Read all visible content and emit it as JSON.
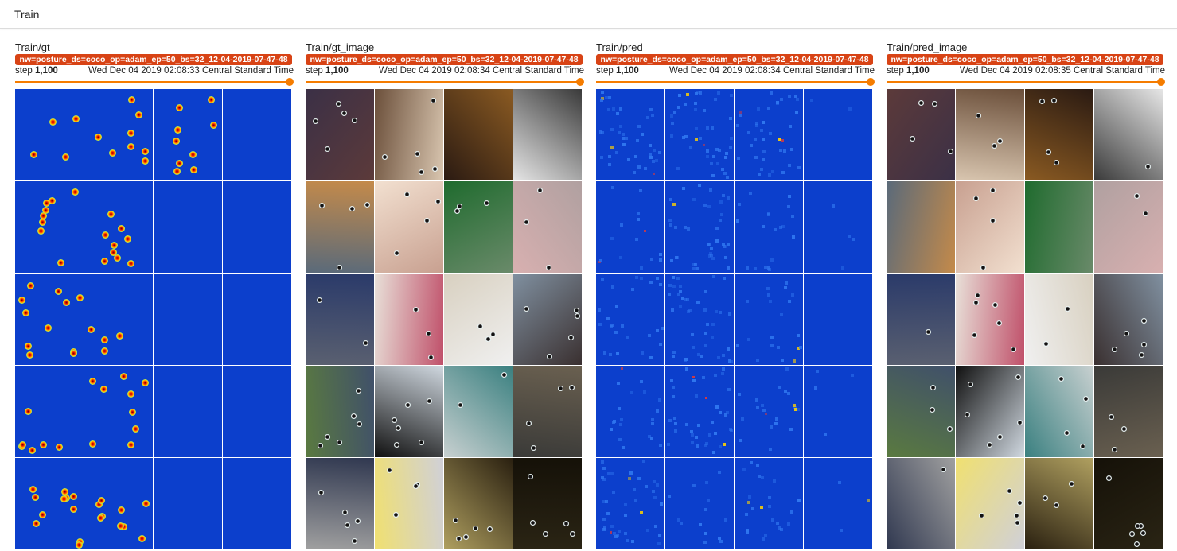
{
  "header": {
    "title": "Train"
  },
  "cards": [
    {
      "title": "Train/gt",
      "run": "nw=posture_ds=coco_op=adam_ep=50_bs=32_12-04-2019-07-47-48",
      "step_label": "step",
      "step_value": "1,100",
      "timestamp": "Wed Dec 04 2019 02:08:33 Central Standard Time",
      "kind": "heatmap"
    },
    {
      "title": "Train/gt_image",
      "run": "nw=posture_ds=coco_op=adam_ep=50_bs=32_12-04-2019-07-47-48",
      "step_label": "step",
      "step_value": "1,100",
      "timestamp": "Wed Dec 04 2019 02:08:34 Central Standard Time",
      "kind": "photo"
    },
    {
      "title": "Train/pred",
      "run": "nw=posture_ds=coco_op=adam_ep=50_bs=32_12-04-2019-07-47-48",
      "step_label": "step",
      "step_value": "1,100",
      "timestamp": "Wed Dec 04 2019 02:08:34 Central Standard Time",
      "kind": "pred"
    },
    {
      "title": "Train/pred_image",
      "run": "nw=posture_ds=coco_op=adam_ep=50_bs=32_12-04-2019-07-47-48",
      "step_label": "step",
      "step_value": "1,100",
      "timestamp": "Wed Dec 04 2019 02:08:35 Central Standard Time",
      "kind": "photo"
    }
  ],
  "colors": {
    "heatmap_background": "#0c3fcc",
    "run_chip": "#d84315",
    "slider": "#f57c00"
  }
}
